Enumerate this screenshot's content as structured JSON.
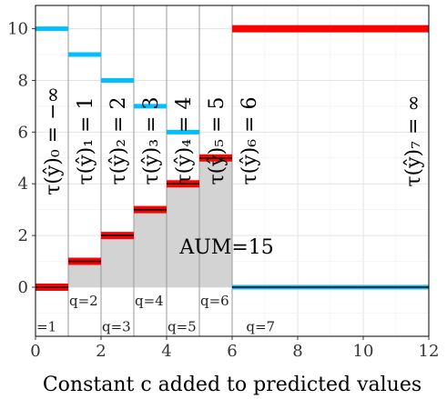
{
  "chart_data": {
    "type": "line",
    "title": "",
    "xlabel": "Constant c added to predicted values",
    "ylabel": "",
    "xlim": [
      0,
      12
    ],
    "ylim": [
      -1.9,
      10.9
    ],
    "xticks": [
      "0",
      "2",
      "4",
      "6",
      "8",
      "10",
      "12"
    ],
    "yticks": [
      "0",
      "2",
      "4",
      "6",
      "8",
      "10"
    ],
    "grid": true,
    "colors": {
      "red": "#ff0000",
      "blue": "#00bfff",
      "area": "#d3d3d3",
      "dark": "#000000"
    },
    "intervals": [
      {
        "x": [
          -0.5,
          1
        ],
        "red": 0,
        "blue": 10
      },
      {
        "x": [
          1,
          2
        ],
        "red": 1,
        "blue": 9
      },
      {
        "x": [
          2,
          3
        ],
        "red": 2,
        "blue": 8
      },
      {
        "x": [
          3,
          4
        ],
        "red": 3,
        "blue": 7
      },
      {
        "x": [
          4,
          5
        ],
        "red": 4,
        "blue": 6
      },
      {
        "x": [
          5,
          6
        ],
        "red": 5,
        "blue": 5
      },
      {
        "x": [
          6,
          12
        ],
        "red": 10,
        "blue": 0
      }
    ],
    "breakpoints": [
      1,
      2,
      3,
      4,
      5,
      6
    ],
    "area_label": "AUM=15",
    "q_labels": [
      {
        "text": "=1",
        "x": 0.0,
        "y": -1.5
      },
      {
        "text": "q=2",
        "x": 1.0,
        "y": -0.5
      },
      {
        "text": "q=3",
        "x": 2.0,
        "y": -1.5
      },
      {
        "text": "q=4",
        "x": 3.0,
        "y": -0.5
      },
      {
        "text": "q=5",
        "x": 4.0,
        "y": -1.5
      },
      {
        "text": "q=6",
        "x": 5.0,
        "y": -0.5
      },
      {
        "text": "q=7",
        "x": 6.4,
        "y": -1.5
      }
    ],
    "tau_labels": [
      {
        "text": "τ(ŷ)₀ = −∞",
        "x": 0.5
      },
      {
        "text": "τ(ŷ)₁ = 1",
        "x": 1.5
      },
      {
        "text": "τ(ŷ)₂ = 2",
        "x": 2.5
      },
      {
        "text": "τ(ŷ)₃ = 3",
        "x": 3.5
      },
      {
        "text": "τ(ŷ)₄ = 4",
        "x": 4.5
      },
      {
        "text": "τ(ŷ)₅ = 5",
        "x": 5.5
      },
      {
        "text": "τ(ŷ)₆ = 6",
        "x": 6.5
      },
      {
        "text": "τ(ŷ)₇ = ∞",
        "x": 11.5
      }
    ]
  }
}
